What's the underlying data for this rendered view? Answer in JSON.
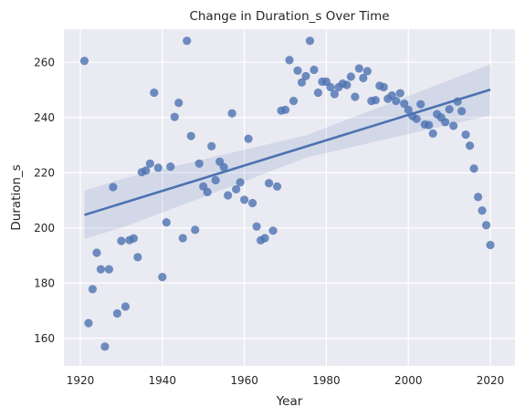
{
  "chart_data": {
    "type": "scatter",
    "title": "Change in Duration_s Over Time",
    "xlabel": "Year",
    "ylabel": "Duration_s",
    "xlim": [
      1916,
      2026
    ],
    "ylim": [
      150,
      272
    ],
    "xticks": [
      1920,
      1940,
      1960,
      1980,
      2000,
      2020
    ],
    "yticks": [
      160,
      180,
      200,
      220,
      240,
      260
    ],
    "grid": true,
    "background": "#eaeaf2",
    "point_color": "#4c72b0",
    "points": [
      [
        1921,
        260.5
      ],
      [
        1922,
        165.5
      ],
      [
        1923,
        177.8
      ],
      [
        1924,
        191
      ],
      [
        1925,
        185
      ],
      [
        1926,
        157
      ],
      [
        1927,
        185
      ],
      [
        1928,
        214.8
      ],
      [
        1929,
        169
      ],
      [
        1930,
        195.3
      ],
      [
        1931,
        171.5
      ],
      [
        1932,
        195.6
      ],
      [
        1933,
        196.2
      ],
      [
        1934,
        189.4
      ],
      [
        1935,
        220.2
      ],
      [
        1936,
        220.8
      ],
      [
        1937,
        223.3
      ],
      [
        1938,
        249
      ],
      [
        1939,
        221.8
      ],
      [
        1940,
        182.2
      ],
      [
        1941,
        202
      ],
      [
        1942,
        222.2
      ],
      [
        1943,
        240.2
      ],
      [
        1944,
        245.3
      ],
      [
        1945,
        196.3
      ],
      [
        1946,
        267.8
      ],
      [
        1947,
        233.3
      ],
      [
        1948,
        199.3
      ],
      [
        1949,
        223.3
      ],
      [
        1950,
        215
      ],
      [
        1951,
        213
      ],
      [
        1952,
        229.6
      ],
      [
        1953,
        217.3
      ],
      [
        1954,
        224
      ],
      [
        1955,
        222
      ],
      [
        1956,
        211.8
      ],
      [
        1957,
        241.5
      ],
      [
        1958,
        214
      ],
      [
        1959,
        216.5
      ],
      [
        1960,
        210.2
      ],
      [
        1961,
        232.3
      ],
      [
        1962,
        209
      ],
      [
        1963,
        200.5
      ],
      [
        1964,
        195.5
      ],
      [
        1965,
        196.3
      ],
      [
        1966,
        216.2
      ],
      [
        1967,
        199
      ],
      [
        1968,
        215
      ],
      [
        1969,
        242.5
      ],
      [
        1970,
        242.8
      ],
      [
        1971,
        260.8
      ],
      [
        1972,
        246
      ],
      [
        1973,
        257
      ],
      [
        1974,
        252.7
      ],
      [
        1975,
        255
      ],
      [
        1976,
        267.8
      ],
      [
        1977,
        257.3
      ],
      [
        1978,
        249
      ],
      [
        1979,
        253
      ],
      [
        1980,
        253
      ],
      [
        1981,
        251
      ],
      [
        1982,
        248.5
      ],
      [
        1983,
        251
      ],
      [
        1984,
        252.3
      ],
      [
        1985,
        251.8
      ],
      [
        1986,
        254.8
      ],
      [
        1987,
        247.5
      ],
      [
        1988,
        257.8
      ],
      [
        1989,
        254.3
      ],
      [
        1990,
        256.8
      ],
      [
        1991,
        246
      ],
      [
        1992,
        246.3
      ],
      [
        1993,
        251.5
      ],
      [
        1994,
        251
      ],
      [
        1995,
        246.8
      ],
      [
        1996,
        248
      ],
      [
        1997,
        246
      ],
      [
        1998,
        248.8
      ],
      [
        1999,
        245
      ],
      [
        2000,
        242.8
      ],
      [
        2001,
        240.5
      ],
      [
        2002,
        239.5
      ],
      [
        2003,
        244.8
      ],
      [
        2004,
        237.5
      ],
      [
        2005,
        237.3
      ],
      [
        2006,
        234.2
      ],
      [
        2007,
        241.2
      ],
      [
        2008,
        240
      ],
      [
        2009,
        238.3
      ],
      [
        2010,
        243
      ],
      [
        2011,
        237
      ],
      [
        2012,
        245.8
      ],
      [
        2013,
        242.3
      ],
      [
        2014,
        233.8
      ],
      [
        2015,
        229.8
      ],
      [
        2016,
        221.5
      ],
      [
        2017,
        211.2
      ],
      [
        2018,
        206.3
      ],
      [
        2019,
        201
      ],
      [
        2020,
        193.8
      ]
    ],
    "regression": {
      "x_range": [
        1921,
        2020
      ],
      "line_y": [
        204.7,
        250.1
      ],
      "ci_upper": [
        213.5,
        259.3
      ],
      "ci_lower": [
        196.0,
        240.8
      ]
    }
  }
}
